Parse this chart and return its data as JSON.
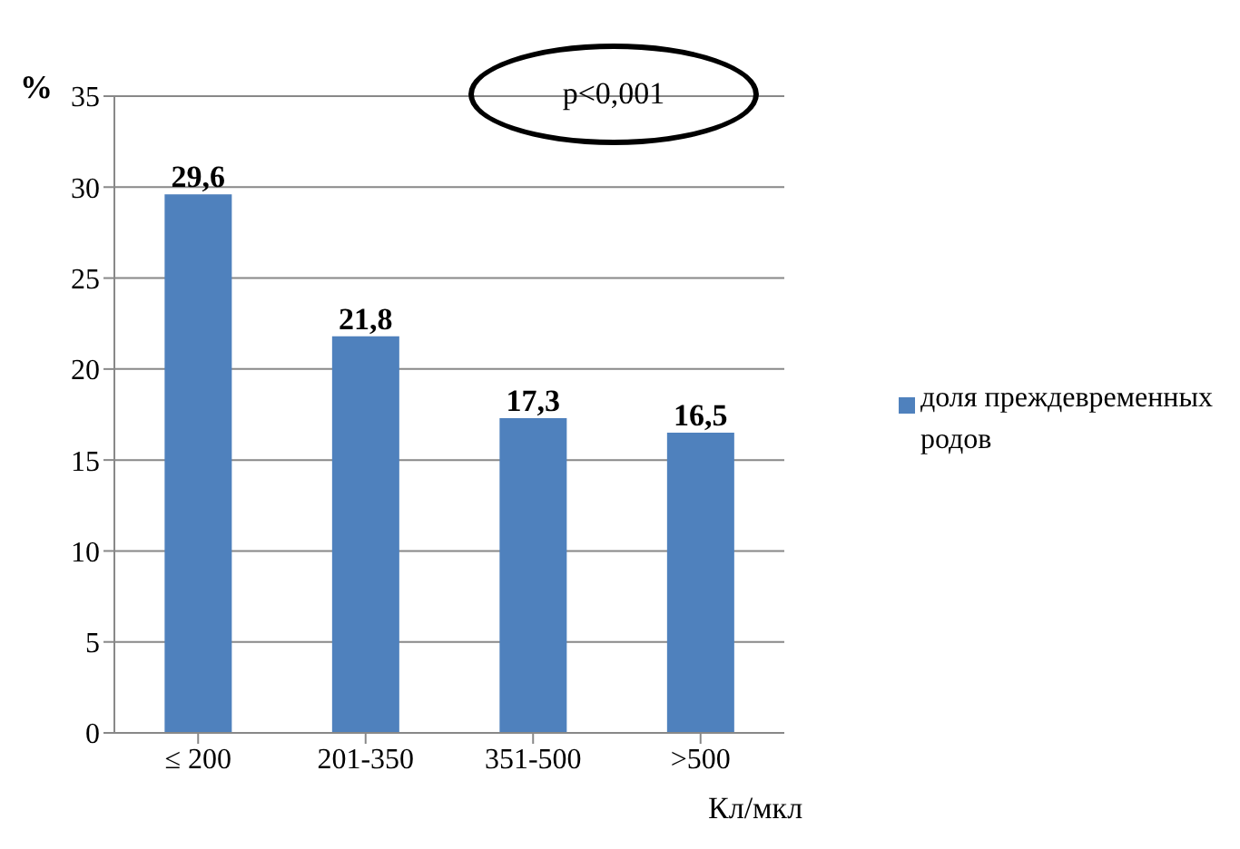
{
  "chart_data": {
    "type": "bar",
    "ylabel": "%",
    "xlabel": "Кл/мкл",
    "categories": [
      "≤ 200",
      "201-350",
      "351-500",
      ">500"
    ],
    "series": [
      {
        "name": "доля преждевременных родов",
        "color": "#4f81bd",
        "values": [
          29.6,
          21.8,
          17.3,
          16.5
        ]
      }
    ],
    "value_labels": [
      "29,6",
      "21,8",
      "17,3",
      "16,5"
    ],
    "ylim": [
      0,
      35
    ],
    "yticks": [
      0,
      5,
      10,
      15,
      20,
      25,
      30,
      35
    ],
    "grid": "y",
    "legend": "right",
    "annotations": [
      "p<0,001"
    ]
  }
}
